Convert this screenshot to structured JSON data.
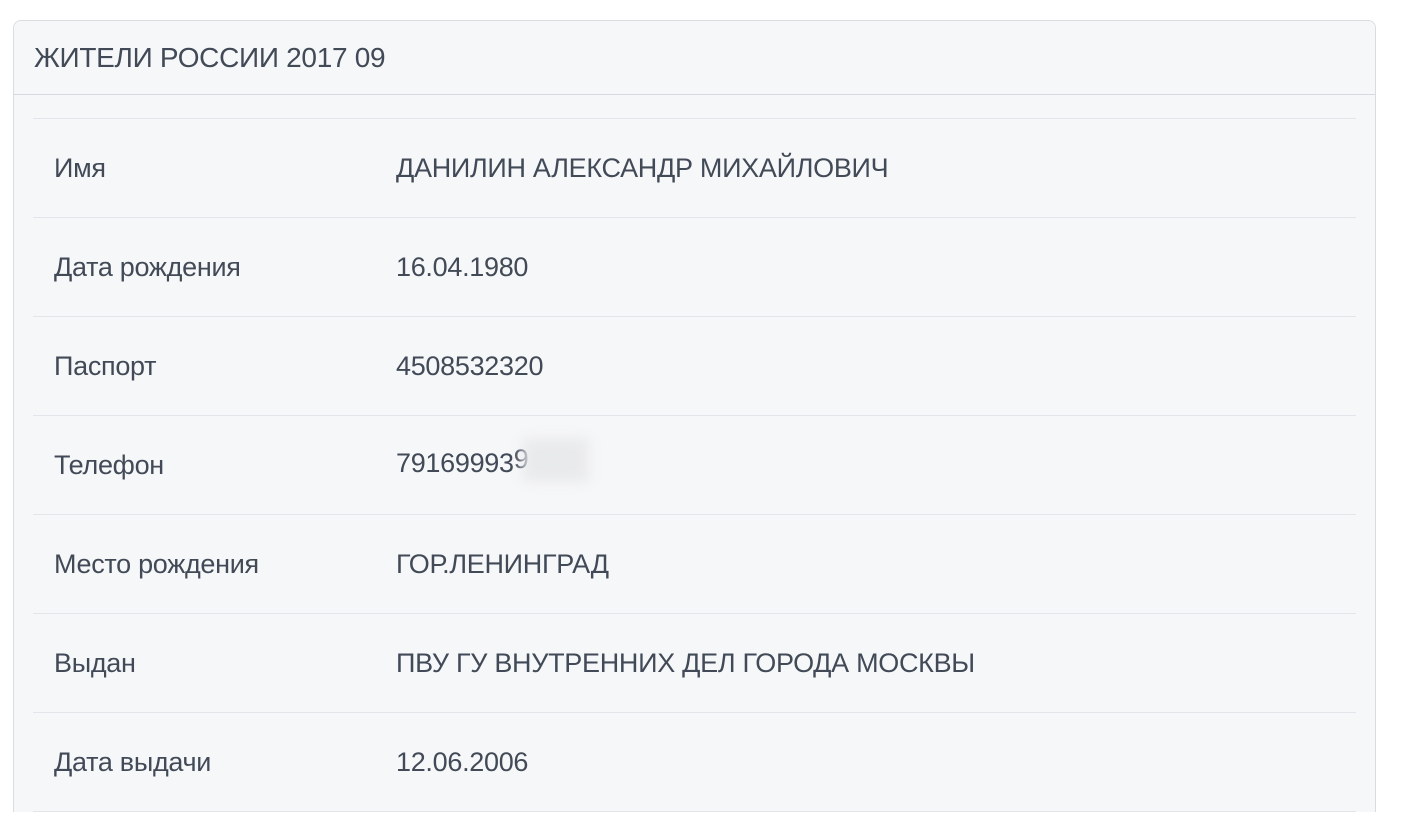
{
  "panel": {
    "title": "ЖИТЕЛИ РОССИИ 2017 09"
  },
  "rows": [
    {
      "label": "Имя",
      "value": "ДАНИЛИН АЛЕКСАНДР МИХАЙЛОВИЧ"
    },
    {
      "label": "Дата рождения",
      "value": "16.04.1980"
    },
    {
      "label": "Паспорт",
      "value": "4508532320"
    },
    {
      "label": "Телефон",
      "value": "79169993",
      "value_partial": "9",
      "redacted": true
    },
    {
      "label": "Место рождения",
      "value": "ГОР.ЛЕНИНГРАД"
    },
    {
      "label": "Выдан",
      "value": "ПВУ ГУ ВНУТРЕННИХ ДЕЛ ГОРОДА МОСКВЫ"
    },
    {
      "label": "Дата выдачи",
      "value": "12.06.2006"
    }
  ],
  "colors": {
    "page_bg": "#ffffff",
    "card_bg": "#f6f7f9",
    "card_border": "#d9dce1",
    "row_divider": "#e3e5ea",
    "text": "#414a56",
    "redaction_blur": "#e9eaec"
  }
}
